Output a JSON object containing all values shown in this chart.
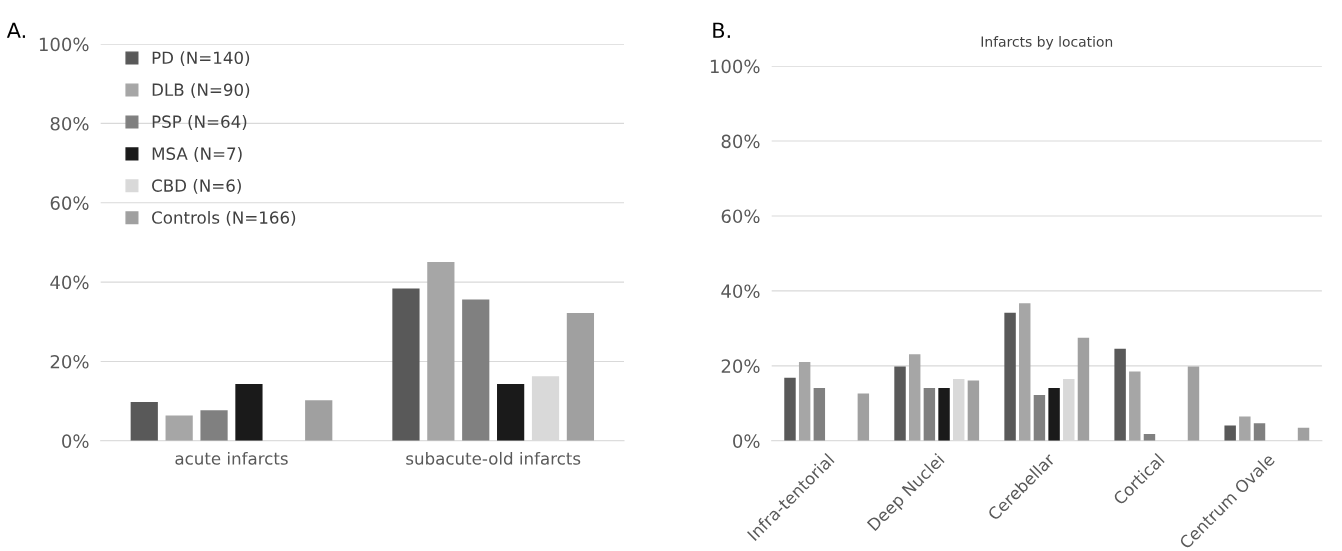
{
  "chart_data": [
    {
      "type": "bar",
      "annotations": [
        "A."
      ],
      "categories": [
        "acute infarcts",
        "subacute-old infarcts"
      ],
      "series": [
        {
          "name": "PD (N=140)",
          "color": "#595959",
          "values": [
            9.8,
            38.4
          ]
        },
        {
          "name": "DLB (N=90)",
          "color": "#a6a6a6",
          "values": [
            6.4,
            45.1
          ]
        },
        {
          "name": "PSP (N=64)",
          "color": "#808080",
          "values": [
            7.7,
            35.6
          ]
        },
        {
          "name": "MSA (N=7)",
          "color": "#1a1a1a",
          "values": [
            14.3,
            14.3
          ]
        },
        {
          "name": "CBD (N=6)",
          "color": "#d9d9d9",
          "values": [
            0,
            16.3
          ]
        },
        {
          "name": "Controls (N=166)",
          "color": "#a0a0a0",
          "values": [
            10.2,
            32.2
          ]
        }
      ],
      "ylim": [
        0,
        100
      ],
      "yticks": [
        {
          "value": 0,
          "label": "0%"
        },
        {
          "value": 20,
          "label": "20%"
        },
        {
          "value": 40,
          "label": "40%"
        },
        {
          "value": 60,
          "label": "60%"
        },
        {
          "value": 80,
          "label": "80%"
        },
        {
          "value": 100,
          "label": "100%"
        }
      ],
      "grid": "y",
      "legend": "top left"
    },
    {
      "type": "bar",
      "title": "Infarcts by location",
      "annotations": [
        "B."
      ],
      "categories": [
        "Infra-tentorial",
        "Deep Nuclei",
        "Cerebellar",
        "Cortical",
        "Centrum Ovale"
      ],
      "series": [
        {
          "color": "#595959",
          "values": [
            16.8,
            19.8,
            34.2,
            24.6,
            4.1
          ]
        },
        {
          "color": "#a6a6a6",
          "values": [
            21.0,
            23.1,
            36.7,
            18.5,
            6.5
          ]
        },
        {
          "color": "#808080",
          "values": [
            14.1,
            14.1,
            12.2,
            1.8,
            4.7
          ]
        },
        {
          "color": "#1a1a1a",
          "values": [
            0,
            14.1,
            14.1,
            0,
            0
          ]
        },
        {
          "color": "#d9d9d9",
          "values": [
            0,
            16.5,
            16.5,
            0,
            0
          ]
        },
        {
          "color": "#a0a0a0",
          "values": [
            12.6,
            16.1,
            27.5,
            19.8,
            3.5
          ]
        }
      ],
      "ylim": [
        0,
        100
      ],
      "yticks": [
        {
          "value": 0,
          "label": "0%"
        },
        {
          "value": 20,
          "label": "20%"
        },
        {
          "value": 40,
          "label": "40%"
        },
        {
          "value": 60,
          "label": "60%"
        },
        {
          "value": 80,
          "label": "80%"
        },
        {
          "value": 100,
          "label": "100%"
        }
      ],
      "grid": "y"
    }
  ]
}
